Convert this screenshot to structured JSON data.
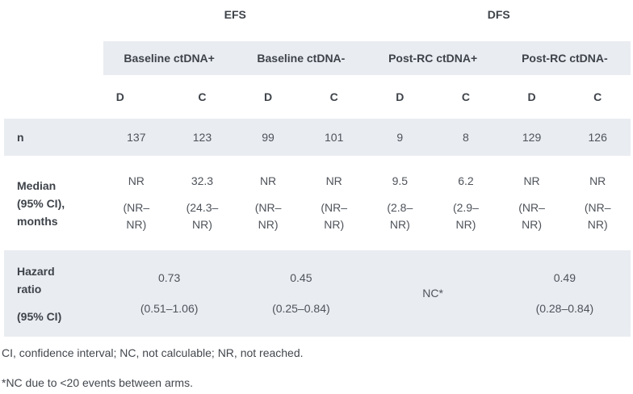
{
  "colors": {
    "band_background": "#e9ecf1",
    "header_text": "#3e434a",
    "data_text": "#4e535a",
    "footnote_text": "#42474d"
  },
  "table": {
    "section_headers": {
      "efs": "EFS",
      "dfs": "DFS"
    },
    "group_headers": {
      "baseline_pos": "Baseline ctDNA+",
      "baseline_neg": "Baseline ctDNA-",
      "postrc_pos": "Post-RC ctDNA+",
      "postrc_neg": "Post-RC ctDNA-"
    },
    "arm_headers": [
      "D",
      "C",
      "D",
      "C",
      "D",
      "C",
      "D",
      "C"
    ],
    "n_row": {
      "label": "n",
      "values": [
        "137",
        "123",
        "99",
        "101",
        "9",
        "8",
        "129",
        "126"
      ]
    },
    "median_row": {
      "label": "Median\n(95% CI),\nmonths",
      "cells": [
        {
          "value": "NR",
          "ci": "(NR–\nNR)"
        },
        {
          "value": "32.3",
          "ci": "(24.3–\nNR)"
        },
        {
          "value": "NR",
          "ci": "(NR–\nNR)"
        },
        {
          "value": "NR",
          "ci": "(NR–\nNR)"
        },
        {
          "value": "9.5",
          "ci": "(2.8–\nNR)"
        },
        {
          "value": "6.2",
          "ci": "(2.9–\nNR)"
        },
        {
          "value": "NR",
          "ci": "(NR–\nNR)"
        },
        {
          "value": "NR",
          "ci": "(NR–\nNR)"
        }
      ]
    },
    "hazard_row": {
      "label_line1": "Hazard\nratio",
      "label_line2": "(95% CI)",
      "cells": [
        {
          "value": "0.73",
          "ci": "(0.51–1.06)"
        },
        {
          "value": "0.45",
          "ci": "(0.25–0.84)"
        },
        {
          "value": "NC*",
          "ci": ""
        },
        {
          "value": "0.49",
          "ci": "(0.28–0.84)"
        }
      ]
    },
    "footnotes": [
      "CI, confidence interval; NC, not calculable; NR, not reached.",
      "*NC due to <20 events between arms."
    ]
  }
}
